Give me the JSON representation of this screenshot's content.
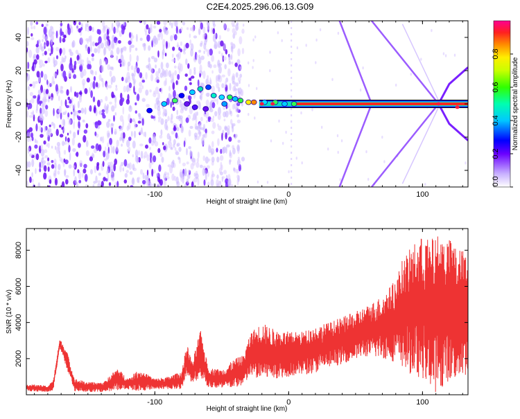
{
  "title": "C2E4.2025.296.06.13.G09",
  "chart_data": [
    {
      "type": "heatmap",
      "xlabel": "Height of straight line (km)",
      "ylabel": "Frequency (Hz)",
      "xlim": [
        -196,
        134
      ],
      "ylim": [
        -50,
        50
      ],
      "xticks": [
        -100,
        0,
        100
      ],
      "yticks": [
        -40,
        -20,
        0,
        20,
        40
      ],
      "colorbar": {
        "label": "Normalized spectral amplitude",
        "range": [
          0,
          1
        ],
        "ticks": [
          "0.0",
          "0.2",
          "0.4",
          "0.6",
          "0.8"
        ]
      },
      "features": {
        "noise_region_x": [
          -196,
          -34
        ],
        "carrier_frequency": 0,
        "carrier_x_range": [
          -22,
          134
        ],
        "diamond_lines": [
          {
            "x": [
              38,
              62
            ],
            "y": [
              50,
              0
            ]
          },
          {
            "x": [
              62,
              112
            ],
            "y": [
              50,
              0
            ]
          },
          {
            "x": [
              38,
              62
            ],
            "y": [
              -50,
              0
            ]
          },
          {
            "x": [
              62,
              112
            ],
            "y": [
              -50,
              0
            ]
          }
        ]
      }
    },
    {
      "type": "line",
      "xlabel": "Height of straight line (km)",
      "ylabel": "SNR (10 * v/v)",
      "xlim": [
        -196,
        134
      ],
      "ylim": [
        0,
        9200
      ],
      "xticks": [
        -100,
        0,
        100
      ],
      "yticks": [
        2000,
        4000,
        6000,
        8000
      ],
      "color": "#ee3333",
      "envelope": {
        "x": [
          -196,
          -180,
          -176,
          -171,
          -166,
          -160,
          -150,
          -138,
          -128,
          -120,
          -112,
          -100,
          -90,
          -80,
          -76,
          -72,
          -66,
          -60,
          -50,
          -40,
          -34,
          -28,
          -20,
          -10,
          0,
          10,
          20,
          30,
          40,
          50,
          60,
          70,
          80,
          85,
          90,
          95,
          100,
          105,
          108,
          112,
          118,
          125,
          134
        ],
        "low": [
          200,
          150,
          200,
          2600,
          1500,
          200,
          150,
          150,
          250,
          300,
          200,
          300,
          300,
          300,
          1200,
          500,
          1000,
          400,
          300,
          400,
          500,
          1000,
          800,
          900,
          1000,
          1100,
          1200,
          1500,
          1700,
          2000,
          2100,
          2000,
          1800,
          1500,
          1200,
          1000,
          900,
          600,
          100,
          200,
          700,
          800,
          1000
        ],
        "high": [
          600,
          500,
          800,
          3100,
          2500,
          900,
          700,
          700,
          1500,
          900,
          1400,
          900,
          1000,
          1300,
          2800,
          1800,
          3600,
          1500,
          1400,
          2000,
          2200,
          3500,
          4000,
          3600,
          3500,
          3500,
          3800,
          4000,
          4300,
          4600,
          5000,
          5500,
          6400,
          7500,
          8000,
          8500,
          8800,
          8600,
          8700,
          8900,
          8800,
          8300,
          7800
        ]
      }
    }
  ]
}
